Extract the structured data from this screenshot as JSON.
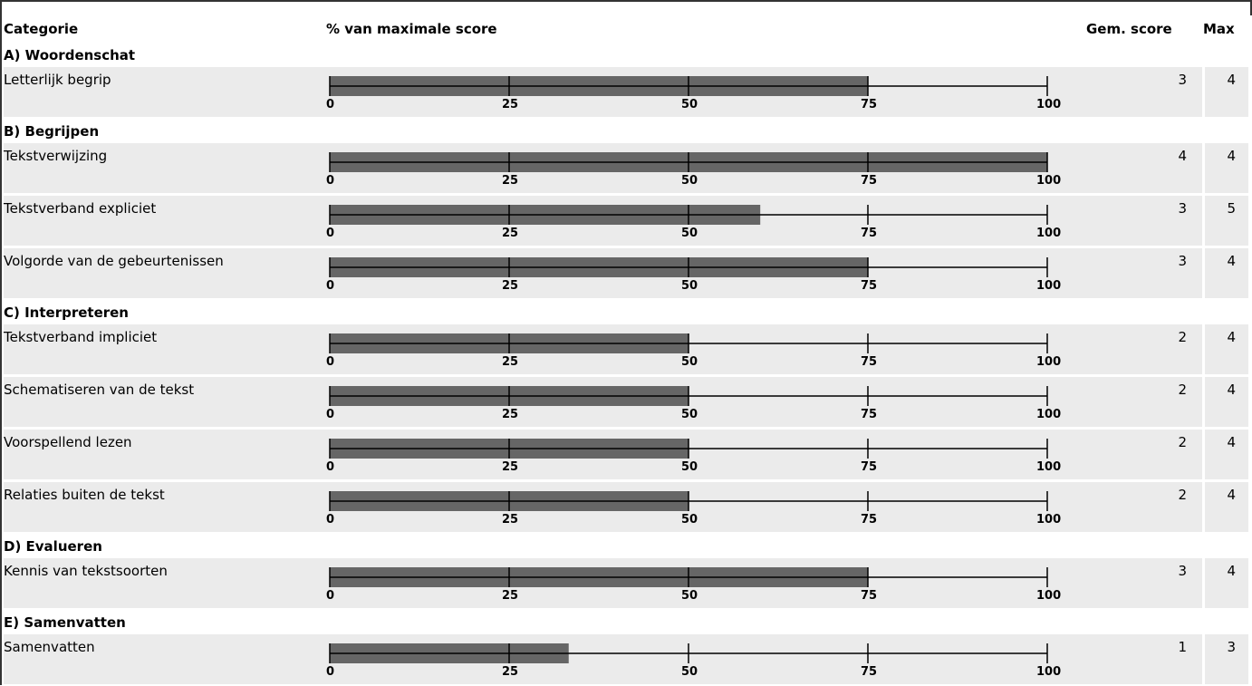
{
  "header": {
    "categorie": "Categorie",
    "percent": "% van maximale score",
    "avg": "Gem. score",
    "max": "Max"
  },
  "colors": {
    "bar": "#666666",
    "row_background": "#ebebeb",
    "axis": "#000000"
  },
  "axis_ticks": [
    "0",
    "25",
    "50",
    "75",
    "100"
  ],
  "categories": [
    {
      "title": "A) Woordenschat",
      "rows": [
        {
          "label": "Letterlijk begrip",
          "avg": "3",
          "max": "4",
          "percent": 75
        }
      ]
    },
    {
      "title": "B) Begrijpen",
      "rows": [
        {
          "label": "Tekstverwijzing",
          "avg": "4",
          "max": "4",
          "percent": 100
        },
        {
          "label": "Tekstverband expliciet",
          "avg": "3",
          "max": "5",
          "percent": 60
        },
        {
          "label": "Volgorde van de gebeurtenissen",
          "avg": "3",
          "max": "4",
          "percent": 75
        }
      ]
    },
    {
      "title": "C) Interpreteren",
      "rows": [
        {
          "label": "Tekstverband impliciet",
          "avg": "2",
          "max": "4",
          "percent": 50
        },
        {
          "label": "Schematiseren van de tekst",
          "avg": "2",
          "max": "4",
          "percent": 50
        },
        {
          "label": "Voorspellend lezen",
          "avg": "2",
          "max": "4",
          "percent": 50
        },
        {
          "label": "Relaties buiten de tekst",
          "avg": "2",
          "max": "4",
          "percent": 50
        }
      ]
    },
    {
      "title": "D) Evalueren",
      "rows": [
        {
          "label": "Kennis van tekstsoorten",
          "avg": "3",
          "max": "4",
          "percent": 75
        }
      ]
    },
    {
      "title": "E) Samenvatten",
      "rows": [
        {
          "label": "Samenvatten",
          "avg": "1",
          "max": "3",
          "percent": 33.3
        }
      ]
    }
  ]
}
